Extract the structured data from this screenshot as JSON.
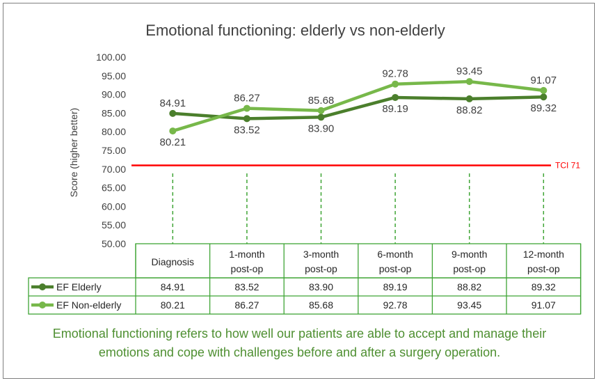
{
  "chart_data": {
    "type": "line",
    "title": "Emotional functioning: elderly vs non-elderly",
    "ylabel": "Score (higher better)",
    "xlabel": "",
    "ylim": [
      50,
      100
    ],
    "y_ticks": [
      "100.00",
      "95.00",
      "90.00",
      "85.00",
      "80.00",
      "75.00",
      "70.00",
      "65.00",
      "60.00",
      "55.00",
      "50.00"
    ],
    "categories": [
      [
        "Diagnosis"
      ],
      [
        "1-month",
        "post-op"
      ],
      [
        "3-month",
        "post-op"
      ],
      [
        "6-month",
        "post-op"
      ],
      [
        "9-month",
        "post-op"
      ],
      [
        "12-month",
        "post-op"
      ]
    ],
    "series": [
      {
        "name": "EF Elderly",
        "color": "#4b7f2c",
        "values": [
          84.91,
          83.52,
          83.9,
          89.19,
          88.82,
          89.32
        ],
        "labels": [
          "84.91",
          "83.52",
          "83.90",
          "89.19",
          "88.82",
          "89.32"
        ]
      },
      {
        "name": "EF Non-elderly",
        "color": "#77b84a",
        "values": [
          80.21,
          86.27,
          85.68,
          92.78,
          93.45,
          91.07
        ],
        "labels": [
          "80.21",
          "86.27",
          "85.68",
          "92.78",
          "93.45",
          "91.07"
        ]
      }
    ],
    "reference_line": {
      "label": "TCI 71",
      "value": 71,
      "color": "#ff0000"
    },
    "table_border_color": "#3fa535",
    "grid": false
  },
  "caption": {
    "line1": "Emotional functioning refers to how well our patients are able to accept and manage their",
    "line2": "emotions and cope with challenges before and after a surgery operation."
  }
}
